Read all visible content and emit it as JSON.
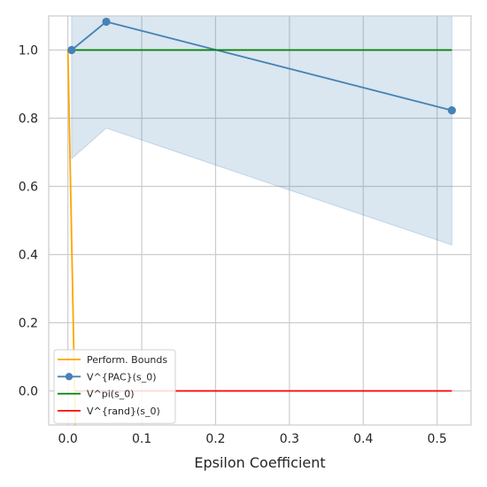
{
  "chart_data": {
    "type": "line",
    "xlabel": "Epsilon Coefficient",
    "ylabel": "",
    "xlim": [
      -0.026,
      0.546
    ],
    "ylim": [
      -0.1,
      1.1
    ],
    "xticks": [
      0.0,
      0.1,
      0.2,
      0.3,
      0.4,
      0.5
    ],
    "xtick_labels": [
      "0.0",
      "0.1",
      "0.2",
      "0.3",
      "0.4",
      "0.5"
    ],
    "yticks": [
      0.0,
      0.2,
      0.4,
      0.6,
      0.8,
      1.0
    ],
    "ytick_labels": [
      "0.0",
      "0.2",
      "0.4",
      "0.6",
      "0.8",
      "1.0"
    ],
    "grid": true,
    "legend_position": "lower-left",
    "series": [
      {
        "name": "Perform. Bounds",
        "color": "#ffa500",
        "marker": false,
        "x": [
          0.0,
          0.01
        ],
        "y": [
          1.0,
          -0.1
        ]
      },
      {
        "name": "V^{PAC}(s_0)",
        "color": "#4682b4",
        "marker": true,
        "x": [
          0.005,
          0.052,
          0.52
        ],
        "y": [
          1.0,
          1.083,
          0.823
        ],
        "band_upper": [
          1.1,
          1.1,
          1.1
        ],
        "band_lower": [
          0.681,
          0.771,
          0.428
        ]
      },
      {
        "name": "V^pi(s_0)",
        "color": "#008000",
        "marker": false,
        "x": [
          0.005,
          0.52
        ],
        "y": [
          1.0,
          1.0
        ]
      },
      {
        "name": "V^{rand}(s_0)",
        "color": "#ff0000",
        "marker": false,
        "x": [
          0.01,
          0.52
        ],
        "y": [
          0.0,
          0.0
        ]
      }
    ]
  }
}
